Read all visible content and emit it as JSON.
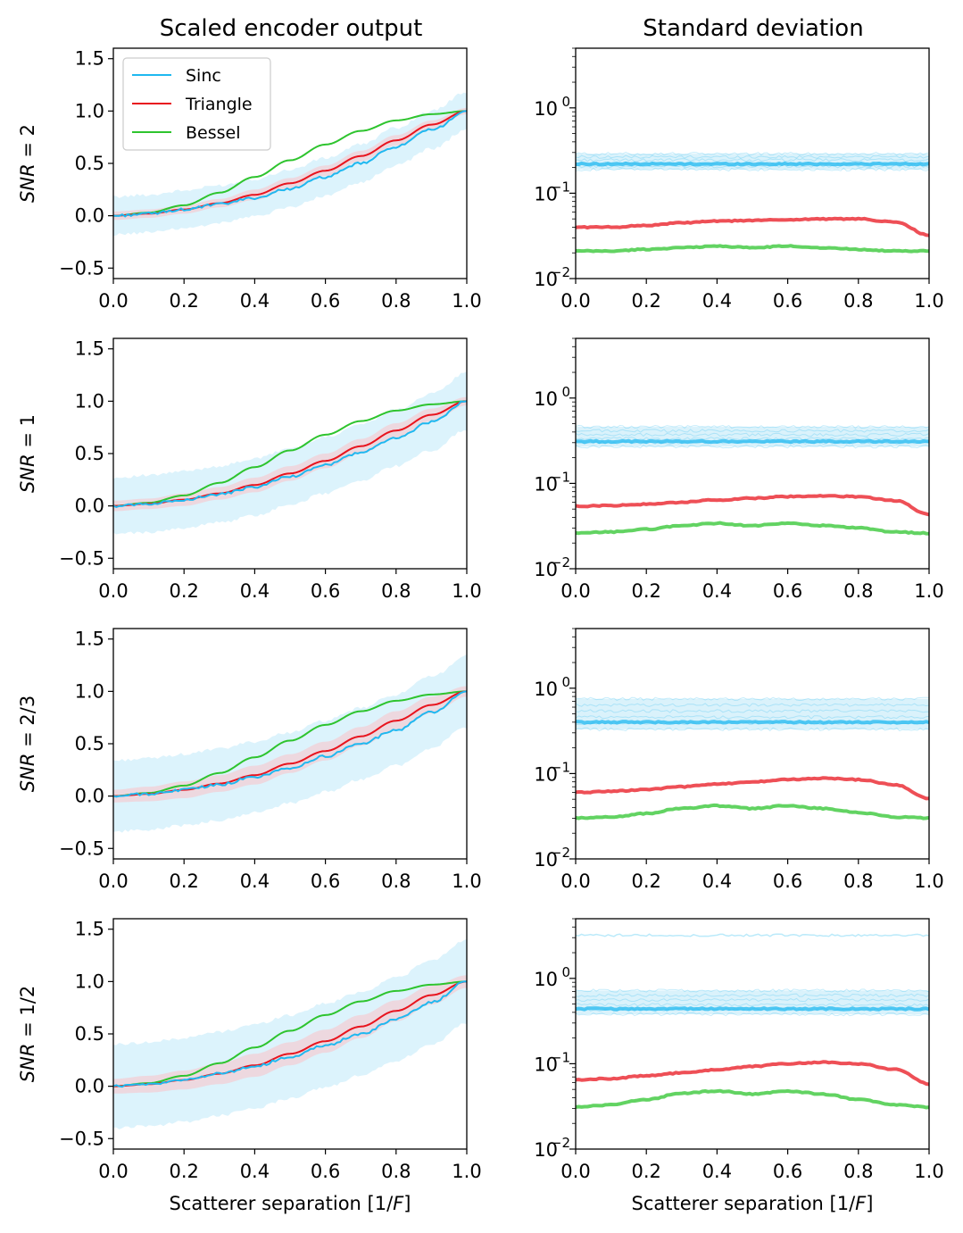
{
  "chart_data": {
    "type": "line",
    "column_titles": [
      "Scaled encoder output",
      "Standard deviation"
    ],
    "xlabel": "Scatterer separation [1/F]",
    "xlabel_parts": {
      "before": "Scatterer separation [1/",
      "italic": "F",
      "after": "]"
    },
    "xlim": [
      0,
      1
    ],
    "xticks": [
      "0.0",
      "0.2",
      "0.4",
      "0.6",
      "0.8",
      "1.0"
    ],
    "left_ylim": [
      -0.6,
      1.6
    ],
    "left_yticks": [
      "−0.5",
      "0.0",
      "0.5",
      "1.0",
      "1.5"
    ],
    "right_yscale": "log",
    "right_ylim": [
      0.01,
      5
    ],
    "right_yticks": [
      {
        "base": "10",
        "exp": "0"
      },
      {
        "base": "10",
        "exp": "−1"
      },
      {
        "base": "10",
        "exp": "−2"
      }
    ],
    "legend": {
      "location": "upper-left",
      "entries": [
        {
          "name": "Sinc",
          "color": "#1fb8f0"
        },
        {
          "name": "Triangle",
          "color": "#e8141e"
        },
        {
          "name": "Bessel",
          "color": "#2ec42e"
        }
      ]
    },
    "colors": {
      "sinc": "#1fb8f0",
      "triangle": "#e8141e",
      "bessel": "#2ec42e",
      "sinc_band": "#d6f1fb",
      "triangle_band": "#f3cfd6"
    },
    "rows": [
      {
        "snr_label": "SNR = 2",
        "snr_var": "SNR",
        "snr_value": "2",
        "mean": {
          "x": [
            0,
            0.1,
            0.2,
            0.3,
            0.4,
            0.5,
            0.6,
            0.7,
            0.8,
            0.9,
            1.0
          ],
          "sinc": [
            0.0,
            0.02,
            0.06,
            0.11,
            0.17,
            0.26,
            0.37,
            0.5,
            0.66,
            0.82,
            1.0
          ],
          "triangle": [
            0.0,
            0.02,
            0.06,
            0.12,
            0.2,
            0.31,
            0.43,
            0.57,
            0.72,
            0.87,
            1.0
          ],
          "bessel": [
            0.0,
            0.03,
            0.1,
            0.22,
            0.37,
            0.53,
            0.68,
            0.81,
            0.91,
            0.97,
            1.0
          ]
        },
        "band": {
          "sinc_halfwidth": [
            0.18,
            0.18,
            0.18,
            0.18,
            0.18,
            0.18,
            0.18,
            0.18,
            0.18,
            0.18,
            0.18
          ],
          "triangle_halfwidth": [
            0.04,
            0.04,
            0.04,
            0.04,
            0.05,
            0.05,
            0.05,
            0.05,
            0.05,
            0.04,
            0.03
          ]
        },
        "std": {
          "x": [
            0,
            0.1,
            0.2,
            0.3,
            0.4,
            0.5,
            0.6,
            0.7,
            0.8,
            0.9,
            1.0
          ],
          "sinc": [
            0.22,
            0.22,
            0.22,
            0.22,
            0.22,
            0.22,
            0.22,
            0.22,
            0.22,
            0.22,
            0.22
          ],
          "triangle": [
            0.04,
            0.04,
            0.042,
            0.045,
            0.047,
            0.048,
            0.049,
            0.05,
            0.05,
            0.046,
            0.032
          ],
          "bessel": [
            0.021,
            0.021,
            0.022,
            0.023,
            0.024,
            0.023,
            0.024,
            0.023,
            0.022,
            0.021,
            0.021
          ]
        },
        "std_band": {
          "sinc_low": 0.19,
          "sinc_high": 0.29
        }
      },
      {
        "snr_label": "SNR = 1",
        "snr_var": "SNR",
        "snr_value": "1",
        "mean": {
          "x": [
            0,
            0.1,
            0.2,
            0.3,
            0.4,
            0.5,
            0.6,
            0.7,
            0.8,
            0.9,
            1.0
          ],
          "sinc": [
            0.0,
            0.02,
            0.06,
            0.11,
            0.18,
            0.28,
            0.39,
            0.51,
            0.65,
            0.8,
            1.0
          ],
          "triangle": [
            0.0,
            0.02,
            0.06,
            0.12,
            0.2,
            0.31,
            0.43,
            0.57,
            0.72,
            0.87,
            1.0
          ],
          "bessel": [
            0.0,
            0.03,
            0.1,
            0.22,
            0.37,
            0.53,
            0.68,
            0.81,
            0.91,
            0.97,
            1.0
          ]
        },
        "band": {
          "sinc_halfwidth": [
            0.27,
            0.27,
            0.27,
            0.27,
            0.27,
            0.27,
            0.27,
            0.27,
            0.27,
            0.27,
            0.27
          ],
          "triangle_halfwidth": [
            0.05,
            0.05,
            0.06,
            0.06,
            0.07,
            0.07,
            0.07,
            0.07,
            0.07,
            0.06,
            0.04
          ]
        },
        "std": {
          "x": [
            0,
            0.1,
            0.2,
            0.3,
            0.4,
            0.5,
            0.6,
            0.7,
            0.8,
            0.9,
            1.0
          ],
          "sinc": [
            0.31,
            0.31,
            0.31,
            0.31,
            0.31,
            0.31,
            0.31,
            0.31,
            0.31,
            0.31,
            0.31
          ],
          "triangle": [
            0.054,
            0.055,
            0.057,
            0.06,
            0.064,
            0.067,
            0.07,
            0.071,
            0.07,
            0.063,
            0.043
          ],
          "bessel": [
            0.026,
            0.027,
            0.029,
            0.032,
            0.034,
            0.032,
            0.034,
            0.032,
            0.03,
            0.027,
            0.026
          ]
        },
        "std_band": {
          "sinc_low": 0.27,
          "sinc_high": 0.46
        }
      },
      {
        "snr_label": "SNR = 2/3",
        "snr_var": "SNR",
        "snr_value": "2/3",
        "mean": {
          "x": [
            0,
            0.1,
            0.2,
            0.3,
            0.4,
            0.5,
            0.6,
            0.7,
            0.8,
            0.9,
            1.0
          ],
          "sinc": [
            0.0,
            0.02,
            0.06,
            0.11,
            0.18,
            0.27,
            0.38,
            0.5,
            0.63,
            0.8,
            1.0
          ],
          "triangle": [
            0.0,
            0.02,
            0.06,
            0.12,
            0.2,
            0.31,
            0.43,
            0.57,
            0.72,
            0.87,
            1.0
          ],
          "bessel": [
            0.0,
            0.03,
            0.1,
            0.22,
            0.37,
            0.53,
            0.68,
            0.81,
            0.91,
            0.97,
            1.0
          ]
        },
        "band": {
          "sinc_halfwidth": [
            0.34,
            0.34,
            0.34,
            0.34,
            0.34,
            0.34,
            0.34,
            0.34,
            0.34,
            0.34,
            0.34
          ],
          "triangle_halfwidth": [
            0.06,
            0.07,
            0.08,
            0.08,
            0.09,
            0.09,
            0.09,
            0.09,
            0.09,
            0.08,
            0.05
          ]
        },
        "std": {
          "x": [
            0,
            0.1,
            0.2,
            0.3,
            0.4,
            0.5,
            0.6,
            0.7,
            0.8,
            0.9,
            1.0
          ],
          "sinc": [
            0.4,
            0.4,
            0.4,
            0.4,
            0.4,
            0.4,
            0.4,
            0.4,
            0.4,
            0.4,
            0.4
          ],
          "triangle": [
            0.06,
            0.062,
            0.065,
            0.07,
            0.075,
            0.08,
            0.085,
            0.088,
            0.085,
            0.074,
            0.051
          ],
          "bessel": [
            0.03,
            0.031,
            0.034,
            0.039,
            0.042,
            0.039,
            0.042,
            0.039,
            0.035,
            0.031,
            0.03
          ]
        },
        "std_band": {
          "sinc_low": 0.33,
          "sinc_high": 0.75
        }
      },
      {
        "snr_label": "SNR = 1/2",
        "snr_var": "SNR",
        "snr_value": "1/2",
        "mean": {
          "x": [
            0,
            0.1,
            0.2,
            0.3,
            0.4,
            0.5,
            0.6,
            0.7,
            0.8,
            0.9,
            1.0
          ],
          "sinc": [
            0.0,
            0.02,
            0.06,
            0.12,
            0.19,
            0.28,
            0.39,
            0.5,
            0.64,
            0.8,
            1.0
          ],
          "triangle": [
            0.0,
            0.02,
            0.06,
            0.12,
            0.2,
            0.31,
            0.43,
            0.57,
            0.72,
            0.87,
            1.0
          ],
          "bessel": [
            0.0,
            0.03,
            0.1,
            0.22,
            0.37,
            0.53,
            0.68,
            0.81,
            0.91,
            0.97,
            1.0
          ]
        },
        "band": {
          "sinc_halfwidth": [
            0.4,
            0.4,
            0.4,
            0.4,
            0.4,
            0.4,
            0.4,
            0.4,
            0.4,
            0.4,
            0.4
          ],
          "triangle_halfwidth": [
            0.07,
            0.08,
            0.09,
            0.1,
            0.11,
            0.11,
            0.11,
            0.11,
            0.1,
            0.09,
            0.06
          ]
        },
        "std": {
          "x": [
            0,
            0.1,
            0.2,
            0.3,
            0.4,
            0.5,
            0.6,
            0.7,
            0.8,
            0.9,
            1.0
          ],
          "sinc": [
            0.44,
            0.44,
            0.44,
            0.44,
            0.44,
            0.44,
            0.44,
            0.44,
            0.44,
            0.44,
            0.44
          ],
          "triangle": [
            0.065,
            0.067,
            0.072,
            0.078,
            0.085,
            0.093,
            0.1,
            0.104,
            0.1,
            0.086,
            0.058
          ],
          "bessel": [
            0.031,
            0.033,
            0.038,
            0.045,
            0.048,
            0.044,
            0.048,
            0.044,
            0.038,
            0.033,
            0.031
          ]
        },
        "std_band": {
          "sinc_low": 0.38,
          "sinc_high": 0.72,
          "sinc_outlier": 3.2
        }
      }
    ]
  }
}
